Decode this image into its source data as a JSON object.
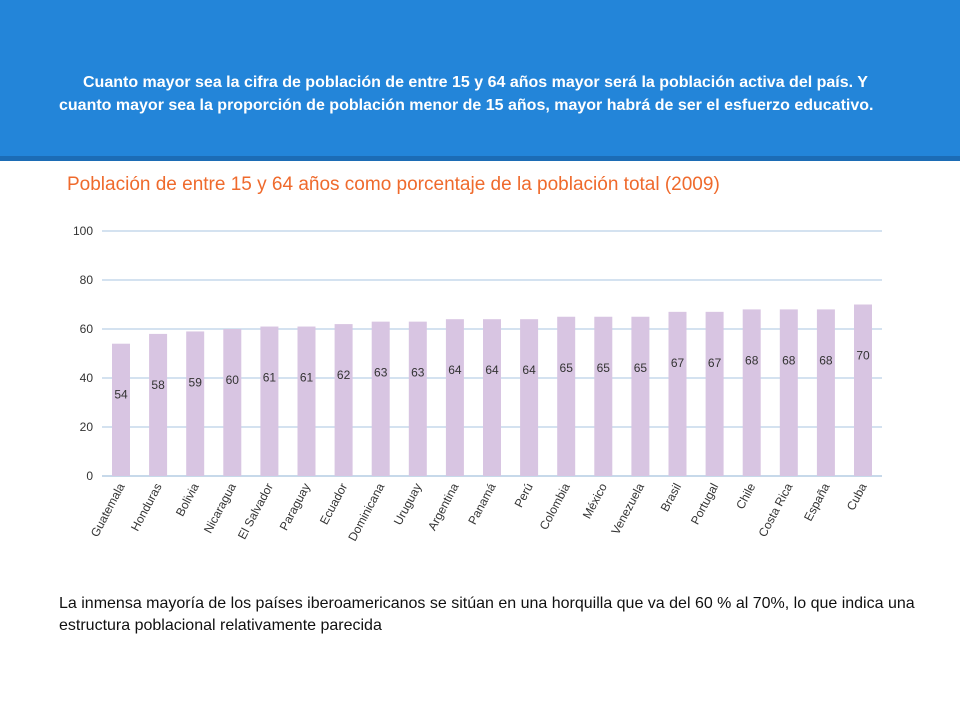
{
  "header": {
    "text": "Cuanto mayor sea la cifra de población de entre 15 y 64 años mayor será la población activa del país. Y cuanto mayor sea la proporción de población menor de 15 años, mayor habrá de ser el esfuerzo educativo.",
    "background_color": "#2385d9"
  },
  "chart_data": {
    "type": "bar",
    "title": "Población de entre 15 y 64 años como porcentaje de la población total (2009)",
    "categories": [
      "Guatemala",
      "Honduras",
      "Bolivia",
      "Nicaragua",
      "El Salvador",
      "Paraguay",
      "Ecuador",
      "Dominicana",
      "Uruguay",
      "Argentina",
      "Panamá",
      "Perú",
      "Colombia",
      "México",
      "Venezuela",
      "Brasil",
      "Portugal",
      "Chile",
      "Costa Rica",
      "España",
      "Cuba"
    ],
    "values": [
      54,
      58,
      59,
      60,
      61,
      61,
      62,
      63,
      63,
      64,
      64,
      64,
      65,
      65,
      65,
      67,
      67,
      68,
      68,
      68,
      70
    ],
    "ylim": [
      0,
      100
    ],
    "yticks": [
      0,
      20,
      40,
      60,
      80,
      100
    ],
    "grid": true,
    "bar_color": "#d8c5e2",
    "title_color": "#ef6a2c"
  },
  "footnote": "La inmensa mayoría de los países iberoamericanos se sitúan en una horquilla que va del 60 % al 70%, lo que indica una estructura poblacional relativamente parecida"
}
